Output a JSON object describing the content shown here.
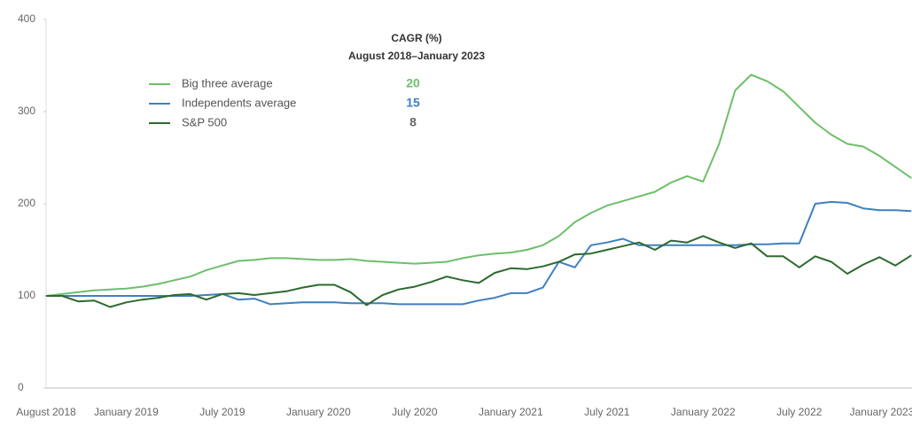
{
  "chart_data": {
    "type": "line",
    "legend_title": "CAGR (%)",
    "legend_subtitle": "August 2018–January 2023",
    "categories": [
      "August 2018",
      null,
      null,
      null,
      null,
      "January 2019",
      null,
      null,
      null,
      null,
      null,
      "July 2019",
      null,
      null,
      null,
      null,
      null,
      "January 2020",
      null,
      null,
      null,
      null,
      null,
      "July 2020",
      null,
      null,
      null,
      null,
      null,
      "January 2021",
      null,
      null,
      null,
      null,
      null,
      "July 2021",
      null,
      null,
      null,
      null,
      null,
      "January 2022",
      null,
      null,
      null,
      null,
      null,
      "July 2022",
      null,
      null,
      null,
      null,
      null,
      "January 2023",
      null
    ],
    "series": [
      {
        "name": "Big three average",
        "color": "#6dbf6b",
        "cagr": 20,
        "values": [
          100,
          102,
          104,
          106,
          107,
          108,
          110,
          113,
          117,
          121,
          128,
          133,
          138,
          139,
          141,
          141,
          140,
          139,
          139,
          140,
          138,
          137,
          136,
          135,
          136,
          137,
          141,
          144,
          146,
          147,
          150,
          155,
          165,
          180,
          190,
          198,
          203,
          208,
          213,
          223,
          230,
          224,
          265,
          323,
          340,
          333,
          322,
          305,
          288,
          275,
          265,
          262,
          252,
          240,
          228
        ]
      },
      {
        "name": "Independents average",
        "color": "#3f7fc0",
        "cagr": 15,
        "values": [
          100,
          100,
          100,
          100,
          100,
          100,
          100,
          100,
          100,
          100,
          101,
          102,
          96,
          97,
          91,
          92,
          93,
          93,
          93,
          92,
          92,
          92,
          91,
          91,
          91,
          91,
          91,
          95,
          98,
          103,
          103,
          109,
          137,
          131,
          155,
          158,
          162,
          155,
          155,
          155,
          155,
          155,
          155,
          155,
          156,
          156,
          157,
          157,
          200,
          202,
          201,
          195,
          193,
          193,
          192
        ]
      },
      {
        "name": "S&P 500",
        "color": "#2d6a2f",
        "cagr": 8,
        "values": [
          100,
          100,
          94,
          95,
          88,
          93,
          96,
          98,
          101,
          102,
          96,
          102,
          103,
          101,
          103,
          105,
          109,
          112,
          112,
          104,
          90,
          101,
          107,
          110,
          115,
          121,
          117,
          114,
          125,
          130,
          129,
          132,
          137,
          145,
          146,
          150,
          154,
          158,
          150,
          160,
          158,
          165,
          158,
          152,
          157,
          143,
          143,
          131,
          143,
          137,
          124,
          134,
          142,
          133,
          144
        ]
      }
    ],
    "ylim": [
      0,
      400
    ],
    "yticks": [
      0,
      100,
      200,
      300,
      400
    ],
    "grid": false
  }
}
